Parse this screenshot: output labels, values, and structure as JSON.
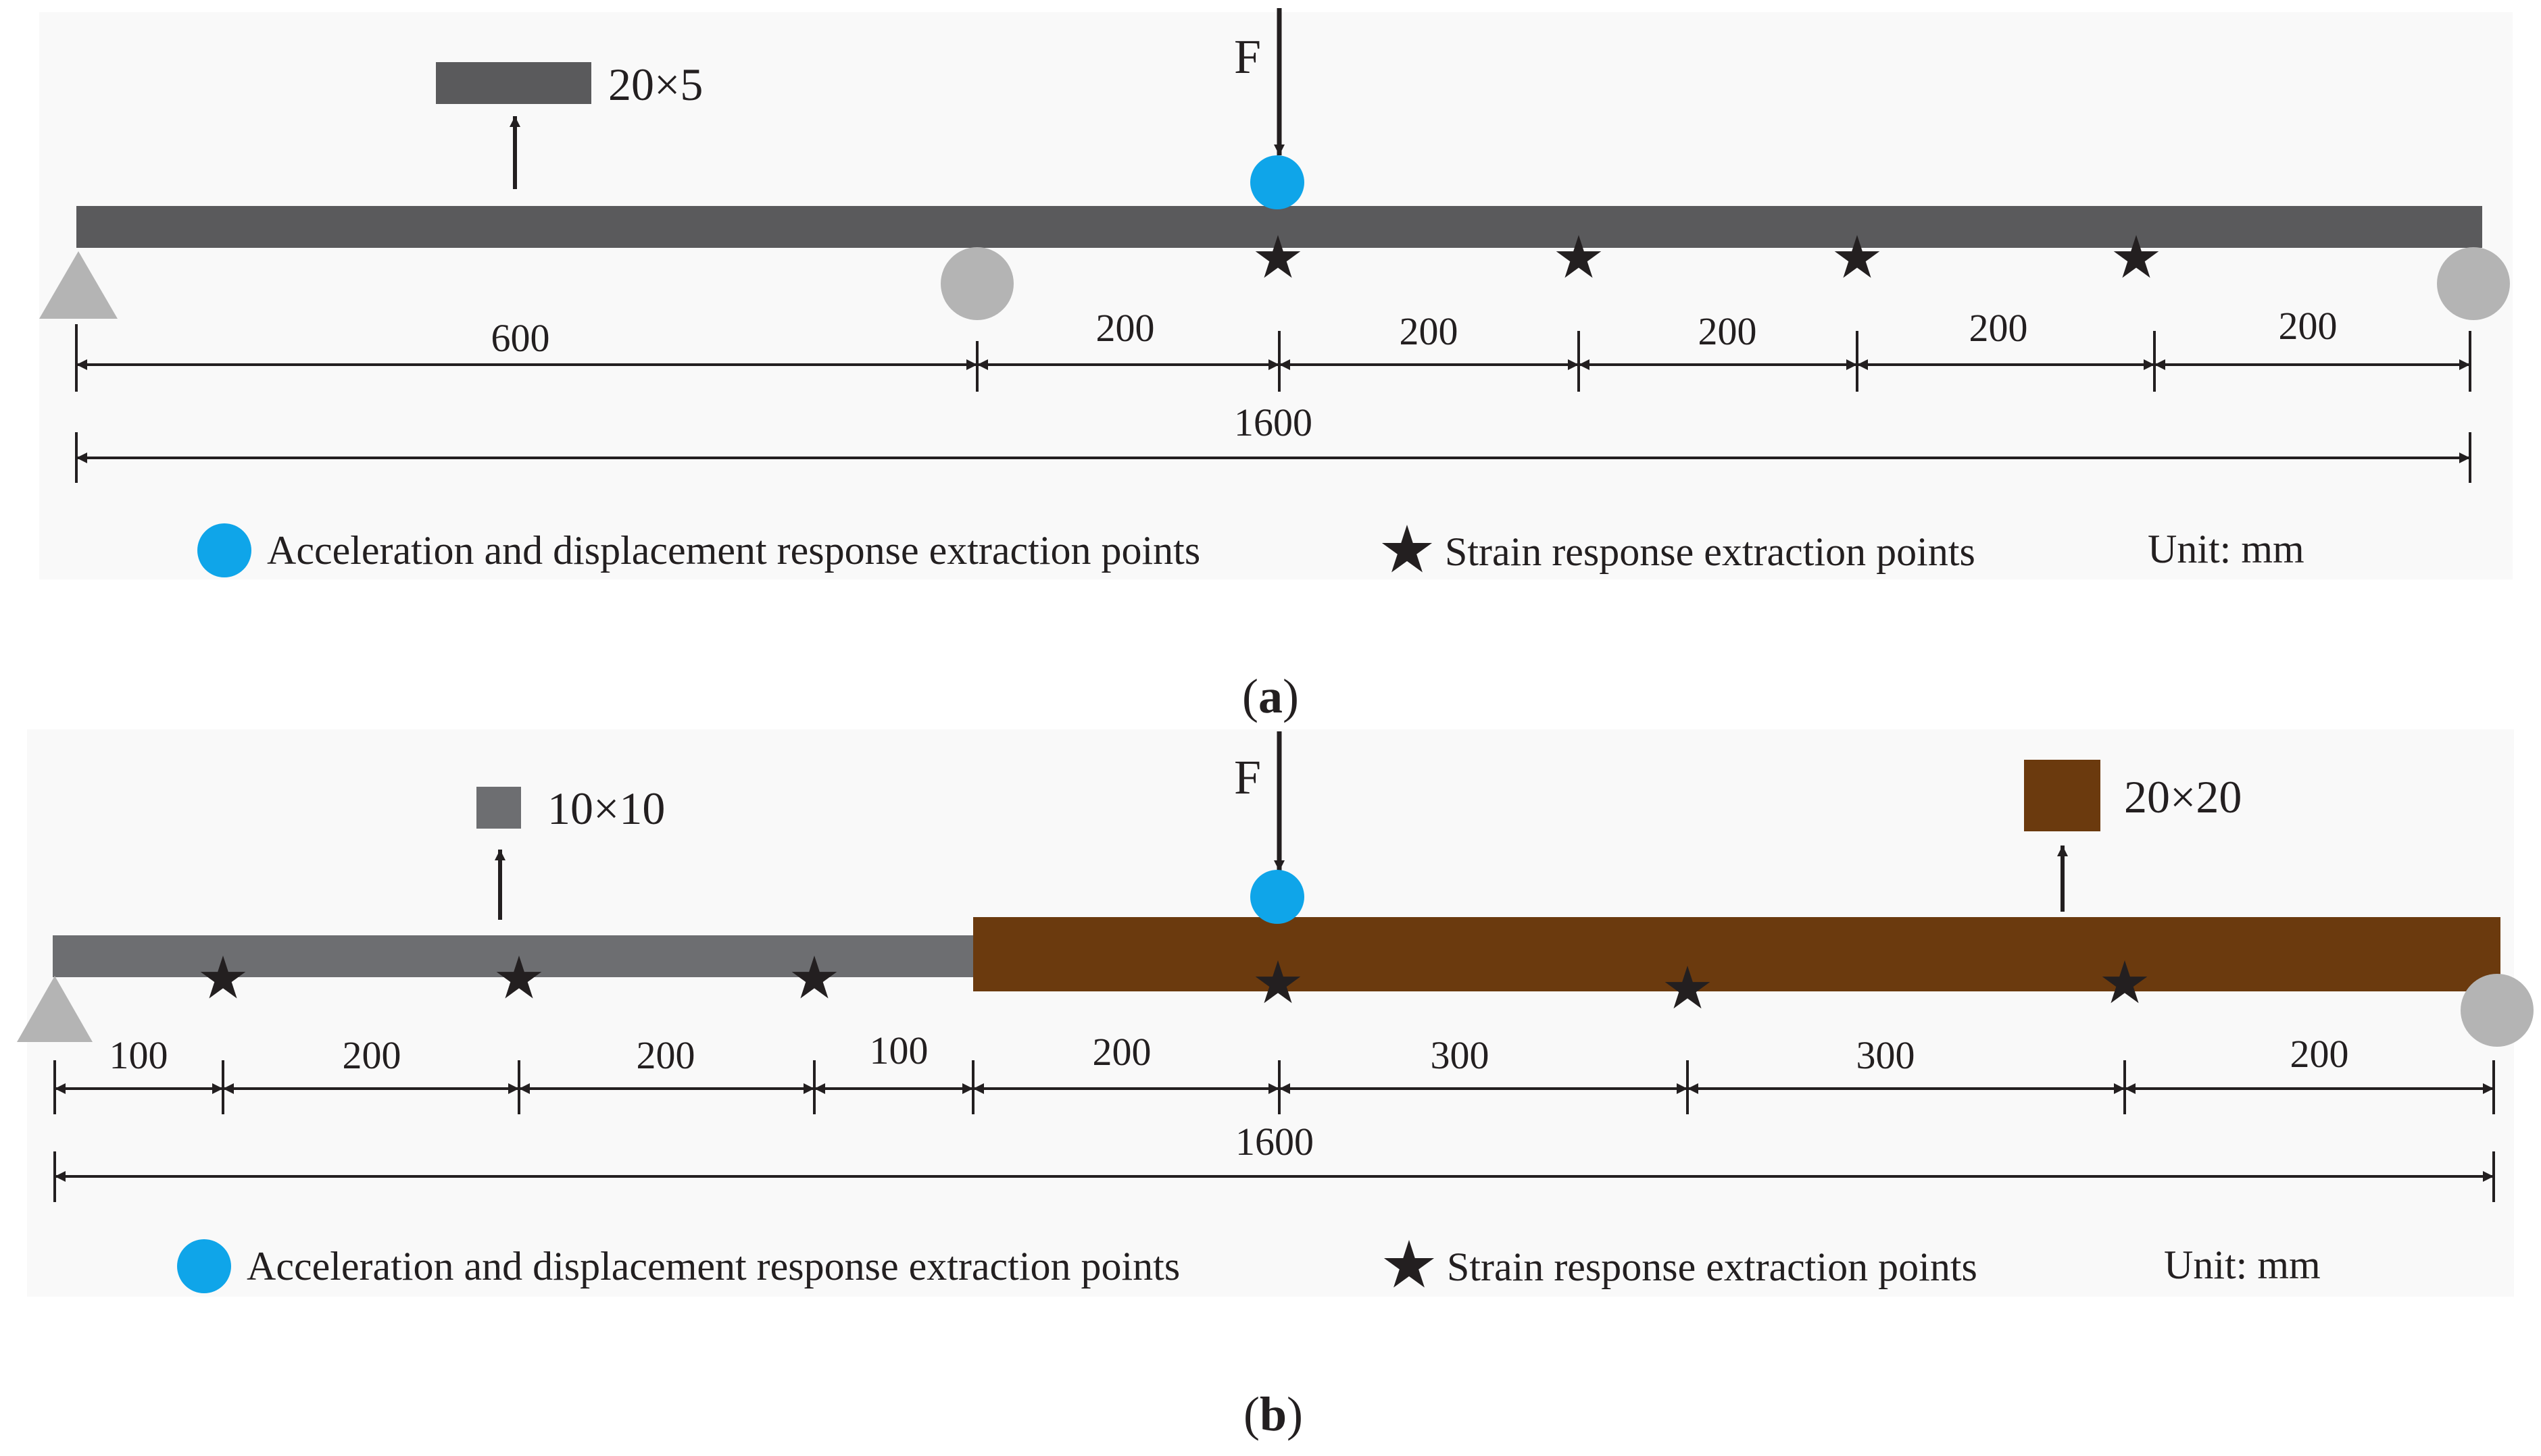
{
  "panel_a": {
    "caption_letter": "a",
    "force_label": "F",
    "load_label": "20×5",
    "dims": [
      "600",
      "200",
      "200",
      "200",
      "200",
      "200"
    ],
    "total": "1600",
    "legend": {
      "accel": "Acceleration and displacement response extraction points",
      "strain": "Strain response extraction points",
      "unit": "Unit: mm"
    }
  },
  "panel_b": {
    "caption_letter": "b",
    "force_label": "F",
    "load_small_label": "10×10",
    "load_large_label": "20×20",
    "dims": [
      "100",
      "200",
      "200",
      "100",
      "200",
      "300",
      "300",
      "200"
    ],
    "total": "1600",
    "legend": {
      "accel": "Acceleration and displacement response extraction points",
      "strain": "Strain response extraction points",
      "unit": "Unit: mm"
    }
  },
  "colors": {
    "beam_gray": "#5a5a5c",
    "beam_light_gray": "#6d6e71",
    "beam_brown": "#6b3a0e",
    "support_gray": "#b4b4b4",
    "accel_blue": "#0fa5e9",
    "star_dark": "#231f20",
    "panel_bg": "#f9f9f9"
  }
}
